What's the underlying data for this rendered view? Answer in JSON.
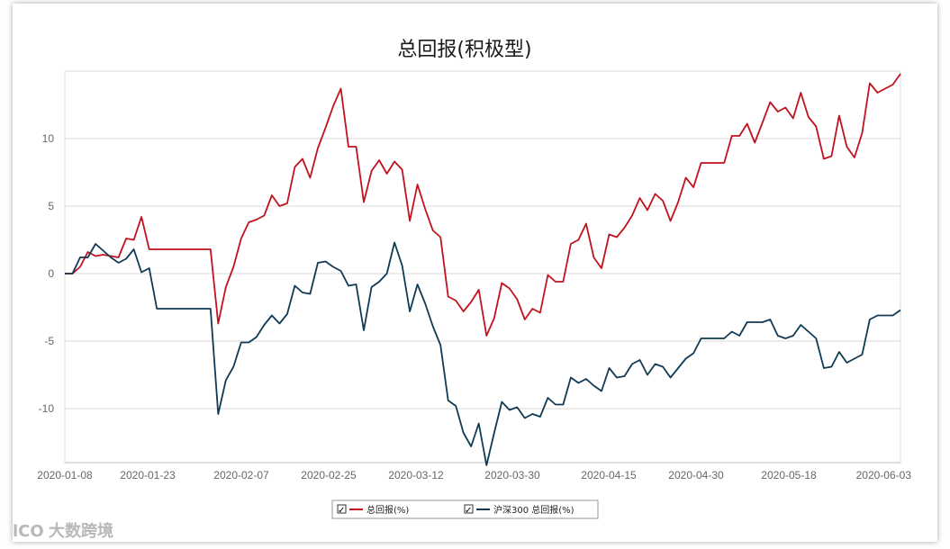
{
  "chart_data": {
    "type": "line",
    "title": "总回报(积极型)",
    "x_tick_labels": [
      "2020-01-08",
      "2020-01-23",
      "2020-02-07",
      "2020-02-25",
      "2020-03-12",
      "2020-03-30",
      "2020-04-15",
      "2020-04-30",
      "2020-05-18",
      "2020-06-03"
    ],
    "y_ticks": [
      -10,
      -5,
      0,
      5,
      10
    ],
    "ylim": [
      -14,
      15
    ],
    "grid": true,
    "legend_position": "bottom-center",
    "series": [
      {
        "name": "总回报(%)",
        "color": "#c0121f",
        "values": [
          0,
          0,
          0.5,
          1.6,
          1.3,
          1.4,
          1.3,
          1.2,
          2.6,
          2.5,
          4.2,
          1.8,
          1.8,
          1.8,
          1.8,
          1.8,
          1.8,
          1.8,
          1.8,
          1.8,
          -3.7,
          -1.0,
          0.5,
          2.6,
          3.8,
          4.0,
          4.3,
          5.8,
          5.0,
          5.2,
          7.9,
          8.5,
          7.1,
          9.3,
          10.8,
          12.4,
          13.7,
          9.4,
          9.4,
          5.3,
          7.6,
          8.4,
          7.4,
          8.3,
          7.7,
          3.9,
          6.6,
          4.8,
          3.2,
          2.7,
          -1.7,
          -2.0,
          -2.8,
          -2.1,
          -1.2,
          -4.6,
          -3.3,
          -0.7,
          -1.1,
          -1.9,
          -3.4,
          -2.6,
          -2.9,
          -0.1,
          -0.6,
          -0.6,
          2.2,
          2.5,
          3.7,
          1.2,
          0.4,
          2.9,
          2.7,
          3.4,
          4.3,
          5.6,
          4.7,
          5.9,
          5.4,
          3.9,
          5.3,
          7.1,
          6.4,
          8.2,
          8.2,
          8.2,
          8.2,
          10.2,
          10.2,
          11.1,
          9.7,
          11.2,
          12.7,
          12.0,
          12.3,
          11.5,
          13.4,
          11.6,
          10.9,
          8.5,
          8.7,
          11.7,
          9.4,
          8.6,
          10.4,
          14.1,
          13.4,
          13.7,
          14.0,
          14.8
        ]
      },
      {
        "name": "沪深300 总回报(%)",
        "color": "#103a55",
        "values": [
          0,
          0,
          1.2,
          1.2,
          2.2,
          1.7,
          1.2,
          0.8,
          1.1,
          1.8,
          0.1,
          0.4,
          -2.6,
          -2.6,
          -2.6,
          -2.6,
          -2.6,
          -2.6,
          -2.6,
          -2.6,
          -10.4,
          -7.9,
          -6.9,
          -5.1,
          -5.1,
          -4.7,
          -3.8,
          -3.1,
          -3.7,
          -3.0,
          -0.9,
          -1.4,
          -1.5,
          0.8,
          0.9,
          0.5,
          0.2,
          -0.9,
          -0.8,
          -4.2,
          -1.0,
          -0.6,
          0.0,
          2.3,
          0.6,
          -2.8,
          -0.8,
          -2.2,
          -3.9,
          -5.3,
          -9.4,
          -9.8,
          -11.8,
          -12.8,
          -11.1,
          -14.2,
          -11.8,
          -9.5,
          -10.1,
          -9.9,
          -10.7,
          -10.4,
          -10.6,
          -9.2,
          -9.7,
          -9.7,
          -7.7,
          -8.1,
          -7.8,
          -8.3,
          -8.7,
          -7.0,
          -7.7,
          -7.6,
          -6.7,
          -6.4,
          -7.5,
          -6.7,
          -6.9,
          -7.7,
          -7.0,
          -6.3,
          -5.9,
          -4.8,
          -4.8,
          -4.8,
          -4.8,
          -4.3,
          -4.6,
          -3.6,
          -3.6,
          -3.6,
          -3.4,
          -4.6,
          -4.8,
          -4.6,
          -3.8,
          -4.3,
          -4.8,
          -7.0,
          -6.9,
          -5.8,
          -6.6,
          -6.3,
          -6.0,
          -3.4,
          -3.1,
          -3.1,
          -3.1,
          -2.7
        ]
      }
    ]
  },
  "legend": {
    "checked_glyph": "✓"
  },
  "watermark": {
    "logo_text": "lCO",
    "text": "大数跨境"
  }
}
